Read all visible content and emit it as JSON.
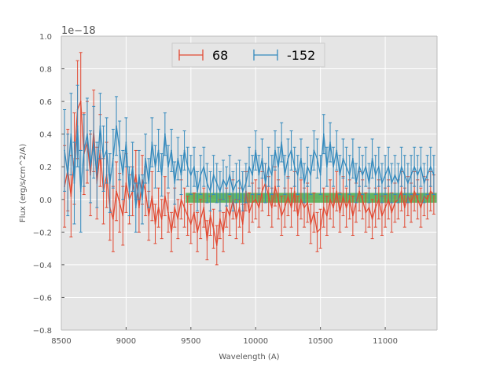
{
  "chart_data": {
    "type": "line",
    "title": "",
    "xlabel": "Wavelength (A)",
    "ylabel": "Flux (erg/s/cm^2/A)",
    "y_offset_label": "1e−18",
    "xlim": [
      8500,
      11400
    ],
    "ylim": [
      -0.8,
      1.0
    ],
    "x_ticks": [
      8500,
      9000,
      9500,
      10000,
      10500,
      11000
    ],
    "x_tick_labels": [
      "8500",
      "9000",
      "9500",
      "10000",
      "10500",
      "11000"
    ],
    "y_ticks": [
      -0.8,
      -0.6,
      -0.4,
      -0.2,
      0.0,
      0.2,
      0.4,
      0.6,
      0.8,
      1.0
    ],
    "y_tick_labels": [
      "−0.8",
      "−0.6",
      "−0.4",
      "−0.2",
      "0.0",
      "0.2",
      "0.4",
      "0.6",
      "0.8",
      "1.0"
    ],
    "grid": true,
    "legend_position": "top-center",
    "band": {
      "x_start": 9460,
      "x_end": 11400,
      "y_low": -0.02,
      "y_high": 0.04,
      "color": "#2ca02c"
    },
    "series": [
      {
        "name": "68",
        "color": "#e24a33",
        "x": [
          8525,
          8550,
          8575,
          8600,
          8625,
          8650,
          8675,
          8700,
          8725,
          8750,
          8775,
          8800,
          8825,
          8850,
          8875,
          8900,
          8925,
          8950,
          8975,
          9000,
          9025,
          9050,
          9075,
          9100,
          9125,
          9150,
          9175,
          9200,
          9225,
          9250,
          9275,
          9300,
          9325,
          9350,
          9375,
          9400,
          9425,
          9450,
          9475,
          9500,
          9525,
          9550,
          9575,
          9600,
          9625,
          9650,
          9675,
          9700,
          9725,
          9750,
          9775,
          9800,
          9825,
          9850,
          9875,
          9900,
          9925,
          9950,
          9975,
          10000,
          10025,
          10050,
          10075,
          10100,
          10125,
          10150,
          10175,
          10200,
          10225,
          10250,
          10275,
          10300,
          10325,
          10350,
          10375,
          10400,
          10425,
          10450,
          10475,
          10500,
          10525,
          10550,
          10575,
          10600,
          10625,
          10650,
          10675,
          10700,
          10725,
          10750,
          10775,
          10800,
          10825,
          10850,
          10875,
          10900,
          10925,
          10950,
          10975,
          11000,
          11025,
          11050,
          11075,
          11100,
          11125,
          11150,
          11175,
          11200,
          11225,
          11250,
          11275,
          11300,
          11325,
          11350,
          11375
        ],
        "y": [
          0.08,
          0.18,
          0.02,
          0.25,
          0.55,
          0.6,
          0.28,
          0.35,
          0.15,
          0.42,
          0.1,
          0.3,
          0.05,
          0.15,
          -0.05,
          -0.12,
          0.05,
          -0.02,
          -0.1,
          0.1,
          0.0,
          0.05,
          0.15,
          -0.05,
          0.12,
          0.05,
          -0.1,
          0.02,
          -0.15,
          -0.05,
          -0.12,
          0.02,
          -0.08,
          -0.2,
          -0.05,
          -0.12,
          0.0,
          -0.05,
          -0.1,
          -0.15,
          -0.08,
          -0.2,
          -0.12,
          -0.05,
          -0.25,
          -0.1,
          -0.18,
          -0.28,
          -0.12,
          -0.2,
          -0.05,
          -0.1,
          0.0,
          -0.12,
          -0.05,
          -0.15,
          0.05,
          -0.08,
          -0.02,
          0.0,
          -0.05,
          0.05,
          0.1,
          0.02,
          -0.05,
          0.08,
          0.0,
          -0.1,
          -0.05,
          0.02,
          -0.05,
          0.05,
          -0.1,
          0.0,
          -0.05,
          -0.02,
          -0.15,
          -0.08,
          -0.2,
          -0.18,
          -0.05,
          -0.1,
          0.0,
          -0.05,
          0.05,
          -0.08,
          0.02,
          -0.05,
          0.0,
          -0.1,
          -0.02,
          0.05,
          0.0,
          -0.08,
          -0.05,
          -0.12,
          -0.05,
          0.0,
          -0.1,
          -0.05,
          0.0,
          -0.08,
          -0.02,
          0.0,
          0.05,
          -0.05,
          0.02,
          -0.02,
          0.05,
          0.0,
          -0.05,
          0.02,
          0.0,
          0.05,
          0.03
        ],
        "err": [
          0.25,
          0.25,
          0.25,
          0.28,
          0.3,
          0.3,
          0.25,
          0.25,
          0.25,
          0.25,
          0.22,
          0.22,
          0.2,
          0.2,
          0.2,
          0.2,
          0.18,
          0.18,
          0.18,
          0.18,
          0.15,
          0.15,
          0.15,
          0.15,
          0.15,
          0.15,
          0.15,
          0.15,
          0.12,
          0.12,
          0.12,
          0.12,
          0.12,
          0.12,
          0.12,
          0.12,
          0.12,
          0.12,
          0.12,
          0.12,
          0.12,
          0.12,
          0.12,
          0.12,
          0.12,
          0.12,
          0.12,
          0.12,
          0.12,
          0.12,
          0.12,
          0.12,
          0.12,
          0.12,
          0.12,
          0.12,
          0.12,
          0.12,
          0.12,
          0.12,
          0.12,
          0.12,
          0.12,
          0.12,
          0.12,
          0.12,
          0.12,
          0.12,
          0.12,
          0.12,
          0.12,
          0.12,
          0.12,
          0.12,
          0.12,
          0.12,
          0.12,
          0.12,
          0.12,
          0.12,
          0.12,
          0.12,
          0.12,
          0.12,
          0.12,
          0.12,
          0.12,
          0.12,
          0.12,
          0.12,
          0.12,
          0.12,
          0.12,
          0.12,
          0.12,
          0.12,
          0.12,
          0.12,
          0.12,
          0.12,
          0.12,
          0.12,
          0.12,
          0.12,
          0.12,
          0.12,
          0.12,
          0.12,
          0.12,
          0.12,
          0.12,
          0.12,
          0.12,
          0.12,
          0.12
        ]
      },
      {
        "name": "-152",
        "color": "#348abd",
        "x": [
          8525,
          8550,
          8575,
          8600,
          8625,
          8650,
          8675,
          8700,
          8725,
          8750,
          8775,
          8800,
          8825,
          8850,
          8875,
          8900,
          8925,
          8950,
          8975,
          9000,
          9025,
          9050,
          9075,
          9100,
          9125,
          9150,
          9175,
          9200,
          9225,
          9250,
          9275,
          9300,
          9325,
          9350,
          9375,
          9400,
          9425,
          9450,
          9475,
          9500,
          9525,
          9550,
          9575,
          9600,
          9625,
          9650,
          9675,
          9700,
          9725,
          9750,
          9775,
          9800,
          9825,
          9850,
          9875,
          9900,
          9925,
          9950,
          9975,
          10000,
          10025,
          10050,
          10075,
          10100,
          10125,
          10150,
          10175,
          10200,
          10225,
          10250,
          10275,
          10300,
          10325,
          10350,
          10375,
          10400,
          10425,
          10450,
          10475,
          10500,
          10525,
          10550,
          10575,
          10600,
          10625,
          10650,
          10675,
          10700,
          10725,
          10750,
          10775,
          10800,
          10825,
          10850,
          10875,
          10900,
          10925,
          10950,
          10975,
          11000,
          11025,
          11050,
          11075,
          11100,
          11125,
          11150,
          11175,
          11200,
          11225,
          11250,
          11275,
          11300,
          11325,
          11350,
          11375
        ],
        "y": [
          0.3,
          0.15,
          0.4,
          0.1,
          0.45,
          0.05,
          0.3,
          0.4,
          0.2,
          0.35,
          0.15,
          0.45,
          0.25,
          0.3,
          0.1,
          0.25,
          0.45,
          0.3,
          0.15,
          0.35,
          0.05,
          0.2,
          -0.05,
          0.15,
          0.0,
          0.25,
          0.1,
          0.35,
          0.2,
          0.3,
          0.15,
          0.4,
          0.2,
          0.3,
          0.1,
          0.25,
          0.15,
          0.3,
          0.2,
          0.15,
          0.2,
          0.05,
          0.15,
          0.2,
          0.1,
          0.05,
          0.15,
          0.1,
          0.05,
          0.12,
          0.08,
          0.15,
          0.05,
          0.1,
          0.12,
          0.05,
          0.1,
          0.2,
          0.15,
          0.3,
          0.15,
          0.25,
          0.1,
          0.2,
          0.15,
          0.3,
          0.2,
          0.35,
          0.15,
          0.25,
          0.3,
          0.2,
          0.15,
          0.25,
          0.1,
          0.2,
          0.15,
          0.3,
          0.25,
          0.15,
          0.4,
          0.2,
          0.35,
          0.2,
          0.3,
          0.15,
          0.25,
          0.2,
          0.15,
          0.25,
          0.1,
          0.2,
          0.15,
          0.2,
          0.1,
          0.25,
          0.15,
          0.2,
          0.1,
          0.15,
          0.2,
          0.1,
          0.15,
          0.1,
          0.2,
          0.15,
          0.1,
          0.15,
          0.2,
          0.15,
          0.2,
          0.1,
          0.15,
          0.2,
          0.15
        ],
        "err": [
          0.25,
          0.25,
          0.25,
          0.25,
          0.25,
          0.25,
          0.22,
          0.22,
          0.22,
          0.22,
          0.2,
          0.2,
          0.2,
          0.2,
          0.18,
          0.18,
          0.18,
          0.18,
          0.15,
          0.15,
          0.15,
          0.15,
          0.15,
          0.15,
          0.15,
          0.15,
          0.15,
          0.15,
          0.13,
          0.13,
          0.13,
          0.13,
          0.13,
          0.13,
          0.13,
          0.13,
          0.12,
          0.12,
          0.12,
          0.12,
          0.12,
          0.12,
          0.12,
          0.12,
          0.12,
          0.12,
          0.12,
          0.12,
          0.12,
          0.12,
          0.12,
          0.12,
          0.12,
          0.12,
          0.12,
          0.12,
          0.12,
          0.12,
          0.12,
          0.12,
          0.12,
          0.12,
          0.12,
          0.12,
          0.12,
          0.12,
          0.12,
          0.12,
          0.12,
          0.12,
          0.12,
          0.12,
          0.12,
          0.12,
          0.12,
          0.12,
          0.12,
          0.12,
          0.12,
          0.12,
          0.12,
          0.12,
          0.12,
          0.12,
          0.12,
          0.12,
          0.12,
          0.12,
          0.12,
          0.12,
          0.12,
          0.12,
          0.12,
          0.12,
          0.12,
          0.12,
          0.12,
          0.12,
          0.12,
          0.12,
          0.12,
          0.12,
          0.12,
          0.12,
          0.12,
          0.12,
          0.12,
          0.12,
          0.12,
          0.12,
          0.12,
          0.12,
          0.12,
          0.12,
          0.12
        ]
      }
    ]
  }
}
